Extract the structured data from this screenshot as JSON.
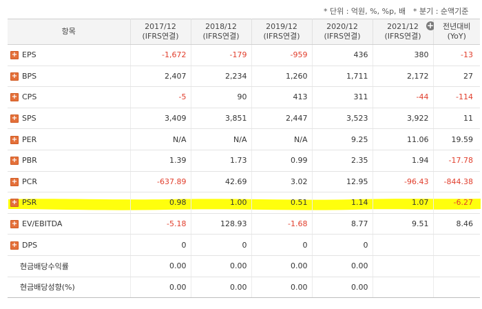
{
  "notes": {
    "unit": "* 단위 : 억원, %, %p, 배",
    "quarter": "* 분기 : 순액기준"
  },
  "header": {
    "item": "항목",
    "columns": [
      {
        "period": "2017/12",
        "basis": "(IFRS연결)"
      },
      {
        "period": "2018/12",
        "basis": "(IFRS연결)"
      },
      {
        "period": "2019/12",
        "basis": "(IFRS연결)"
      },
      {
        "period": "2020/12",
        "basis": "(IFRS연결)"
      },
      {
        "period": "2021/12",
        "basis": "(IFRS연결)"
      },
      {
        "period": "전년대비",
        "basis": "(YoY)"
      }
    ],
    "add_column_icon": "plus-circle-icon"
  },
  "expand_glyph": "+",
  "add_glyph": "+",
  "rows": [
    {
      "label": "EPS",
      "values": [
        "-1,672",
        "-179",
        "-959",
        "436",
        "380",
        "-13"
      ]
    },
    {
      "label": "BPS",
      "values": [
        "2,407",
        "2,234",
        "1,260",
        "1,711",
        "2,172",
        "27"
      ]
    },
    {
      "label": "CPS",
      "values": [
        "-5",
        "90",
        "413",
        "311",
        "-44",
        "-114"
      ]
    },
    {
      "label": "SPS",
      "values": [
        "3,409",
        "3,851",
        "2,447",
        "3,523",
        "3,922",
        "11"
      ]
    },
    {
      "label": "PER",
      "values": [
        "N/A",
        "N/A",
        "N/A",
        "9.25",
        "11.06",
        "19.59"
      ]
    },
    {
      "label": "PBR",
      "values": [
        "1.39",
        "1.73",
        "0.99",
        "2.35",
        "1.94",
        "-17.78"
      ]
    },
    {
      "label": "PCR",
      "values": [
        "-637.89",
        "42.69",
        "3.02",
        "12.95",
        "-96.43",
        "-844.38"
      ]
    },
    {
      "label": "PSR",
      "values": [
        "0.98",
        "1.00",
        "0.51",
        "1.14",
        "1.07",
        "-6.27"
      ]
    },
    {
      "label": "EV/EBITDA",
      "values": [
        "-5.18",
        "128.93",
        "-1.68",
        "8.77",
        "9.51",
        "8.46"
      ]
    },
    {
      "label": "DPS",
      "values": [
        "0",
        "0",
        "0",
        "0",
        "",
        ""
      ]
    },
    {
      "label": "현금배당수익률",
      "values": [
        "0.00",
        "0.00",
        "0.00",
        "0.00",
        "",
        ""
      ]
    },
    {
      "label": "현금배당성향(%)",
      "values": [
        "0.00",
        "0.00",
        "0.00",
        "0.00",
        "",
        ""
      ]
    }
  ],
  "colors": {
    "negative": "#e13d2b",
    "expand_button": "#e4703a",
    "highlight": "#ffff00",
    "header_bg": "#f4f4f4"
  }
}
